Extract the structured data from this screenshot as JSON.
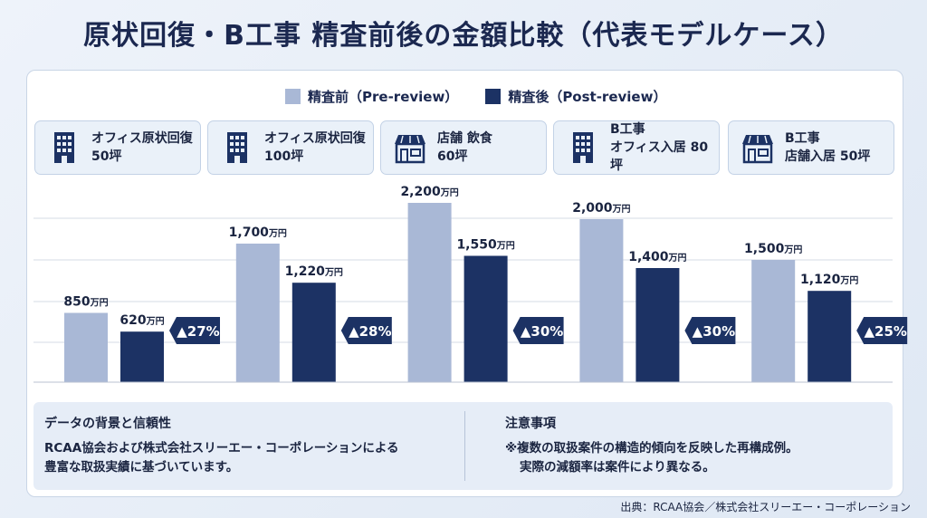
{
  "title": "原状回復・B工事 精査前後の金額比較（代表モデルケース）",
  "legend": {
    "pre": "精査前（Pre-review）",
    "post": "精査後（Post-review）"
  },
  "colors": {
    "pre": "#a9b8d6",
    "post": "#1c3264",
    "grid": "#d5dbe5"
  },
  "cards": [
    {
      "icon": "office-building-icon",
      "line1": "オフィス原状回復",
      "line2": "50坪"
    },
    {
      "icon": "office-building-icon",
      "line1": "オフィス原状回復",
      "line2": "100坪"
    },
    {
      "icon": "storefront-icon",
      "line1": "店舗 飲食",
      "line2": "60坪"
    },
    {
      "icon": "office-building-icon",
      "line1": "B工事",
      "line2": "オフィス入居 80坪"
    },
    {
      "icon": "storefront-icon",
      "line1": "B工事",
      "line2": "店舗入居 50坪"
    }
  ],
  "chart_data": {
    "type": "bar",
    "categories": [
      "オフィス原状回復 50坪",
      "オフィス原状回復 100坪",
      "店舗 飲食 60坪",
      "B工事 オフィス入居 80坪",
      "B工事 店舗入居 50坪"
    ],
    "series": [
      {
        "name": "精査前（Pre-review）",
        "values": [
          850,
          1700,
          2200,
          2000,
          1500
        ],
        "labels": [
          "850",
          "1,700",
          "2,200",
          "2,000",
          "1,500"
        ]
      },
      {
        "name": "精査後（Post-review）",
        "values": [
          620,
          1220,
          1550,
          1400,
          1120
        ],
        "labels": [
          "620",
          "1,220",
          "1,550",
          "1,400",
          "1,120"
        ]
      }
    ],
    "unit": "万円",
    "reductions": [
      "▲27%",
      "▲28%",
      "▲30%",
      "▲30%",
      "▲25%"
    ],
    "ylim": [
      0,
      2200
    ],
    "grid": true,
    "legend_position": "top-center"
  },
  "notes": {
    "left_heading": "データの背景と信頼性",
    "left_line1": "RCAA協会および株式会社スリーエー・コーポレーションによる",
    "left_line2": "豊富な取扱実績に基づいています。",
    "right_heading": "注意事項",
    "right_line1": "※複数の取扱案件の構造的傾向を反映した再構成例。",
    "right_line2": "実際の減額率は案件により異なる。"
  },
  "source": "出典：RCAA協会／株式会社スリーエー・コーポレーション"
}
